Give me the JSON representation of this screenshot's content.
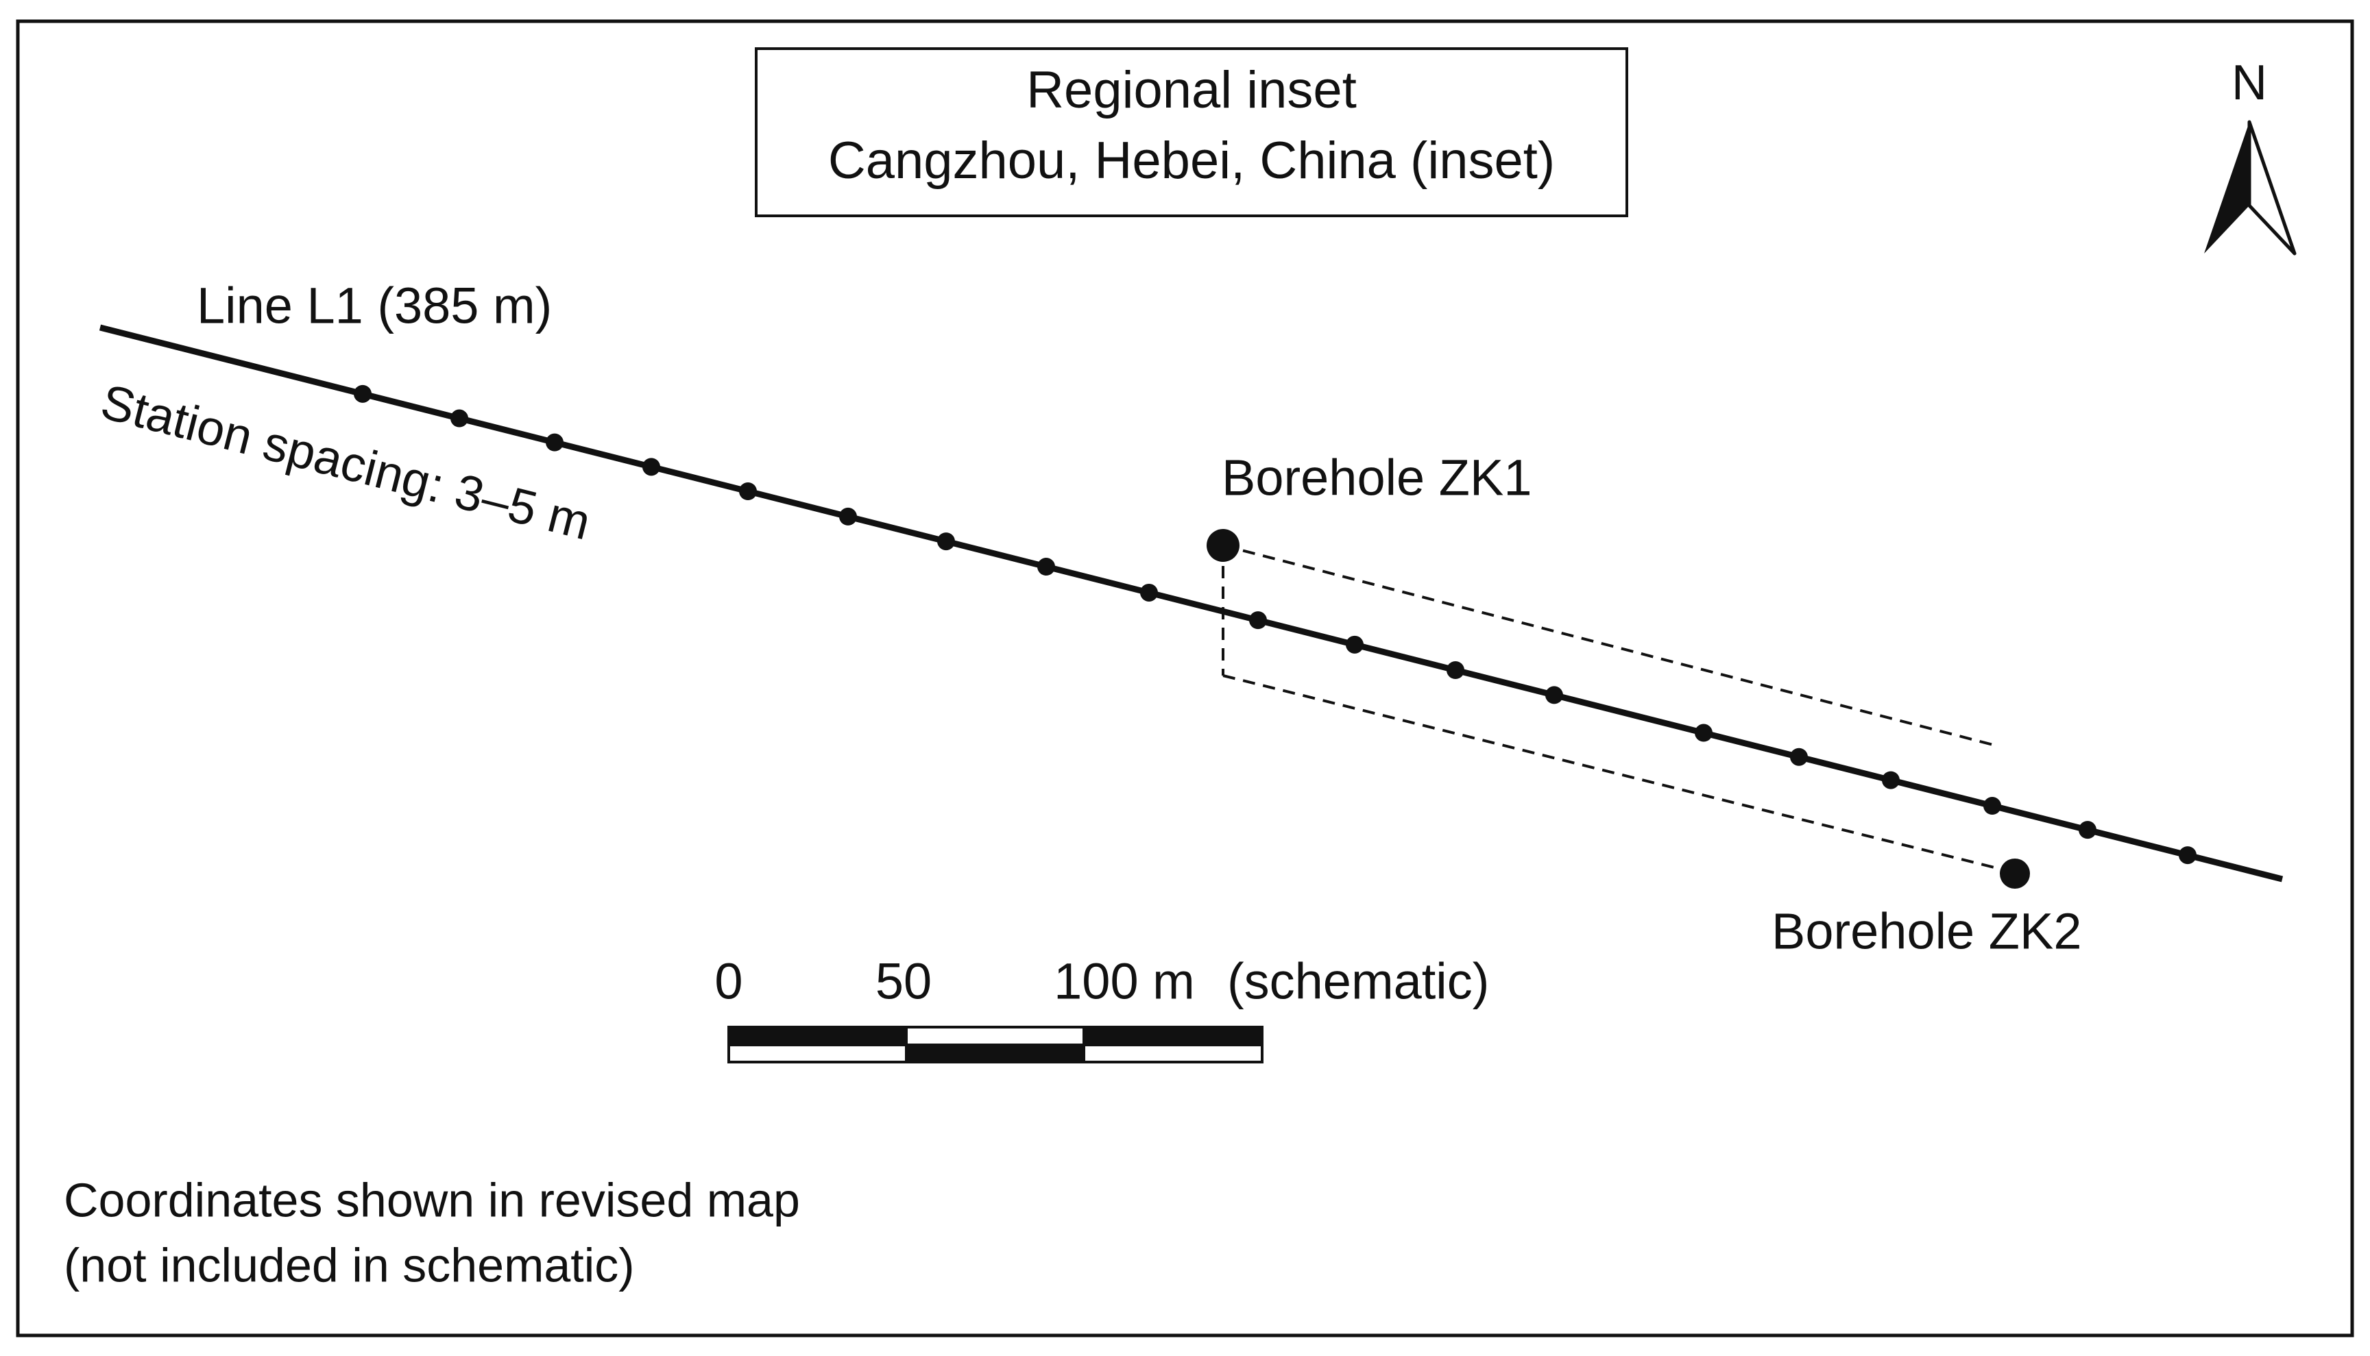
{
  "inset": {
    "title": "Regional inset",
    "subtitle": "Cangzhou, Hebei, China (inset)"
  },
  "north_arrow": {
    "label": "N"
  },
  "survey_line": {
    "label": "Line L1 (385 m)",
    "spacing_note": "Station spacing: 3–5 m"
  },
  "boreholes": [
    {
      "label": "Borehole ZK1"
    },
    {
      "label": "Borehole ZK2"
    }
  ],
  "scale_bar": {
    "labels": [
      "0",
      "50",
      "100 m"
    ],
    "note": "(schematic)"
  },
  "footnote": {
    "lines": [
      "Coordinates shown in revised map",
      "(not included in schematic)"
    ]
  }
}
